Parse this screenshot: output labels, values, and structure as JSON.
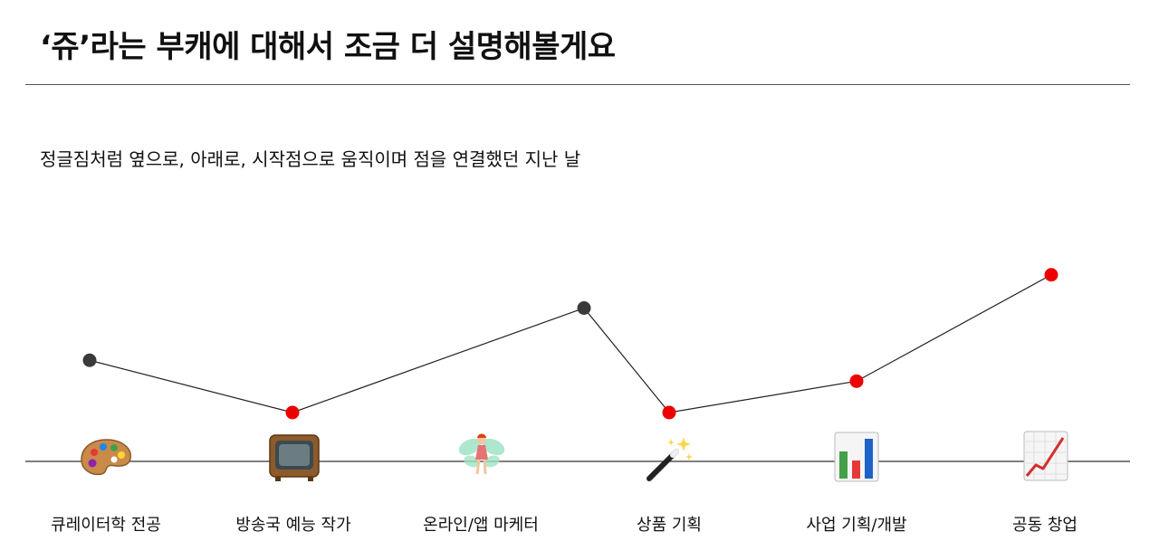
{
  "header": {
    "title": "‘쥬’라는 부캐에 대해서 조금 더 설명해볼게요"
  },
  "subtitle": "정글짐처럼 옆으로, 아래로, 시작점으로 움직이며 점을 연결했던 지난 날",
  "colors": {
    "line": "#222222",
    "dot_dark": "#3a3a3a",
    "dot_red": "#ee0000",
    "baseline": "#555555"
  },
  "timeline": {
    "stages": [
      {
        "label": "큐레이터학 전공",
        "icon": "palette-icon",
        "dot": "dark",
        "level": 0.55
      },
      {
        "label": "방송국 예능 작가",
        "icon": "tv-icon",
        "dot": "red",
        "level": 0.0
      },
      {
        "label": "온라인/앱 마케터",
        "icon": "fairy-icon",
        "dot": "dark",
        "level": 1.1
      },
      {
        "label": "상품 기획",
        "icon": "magic-wand-icon",
        "dot": "red",
        "level": 0.0
      },
      {
        "label": "사업 기획/개발",
        "icon": "bar-chart-icon",
        "dot": "red",
        "level": 0.33
      },
      {
        "label": "공동 창업",
        "icon": "trend-up-icon",
        "dot": "red",
        "level": 1.45
      }
    ]
  }
}
